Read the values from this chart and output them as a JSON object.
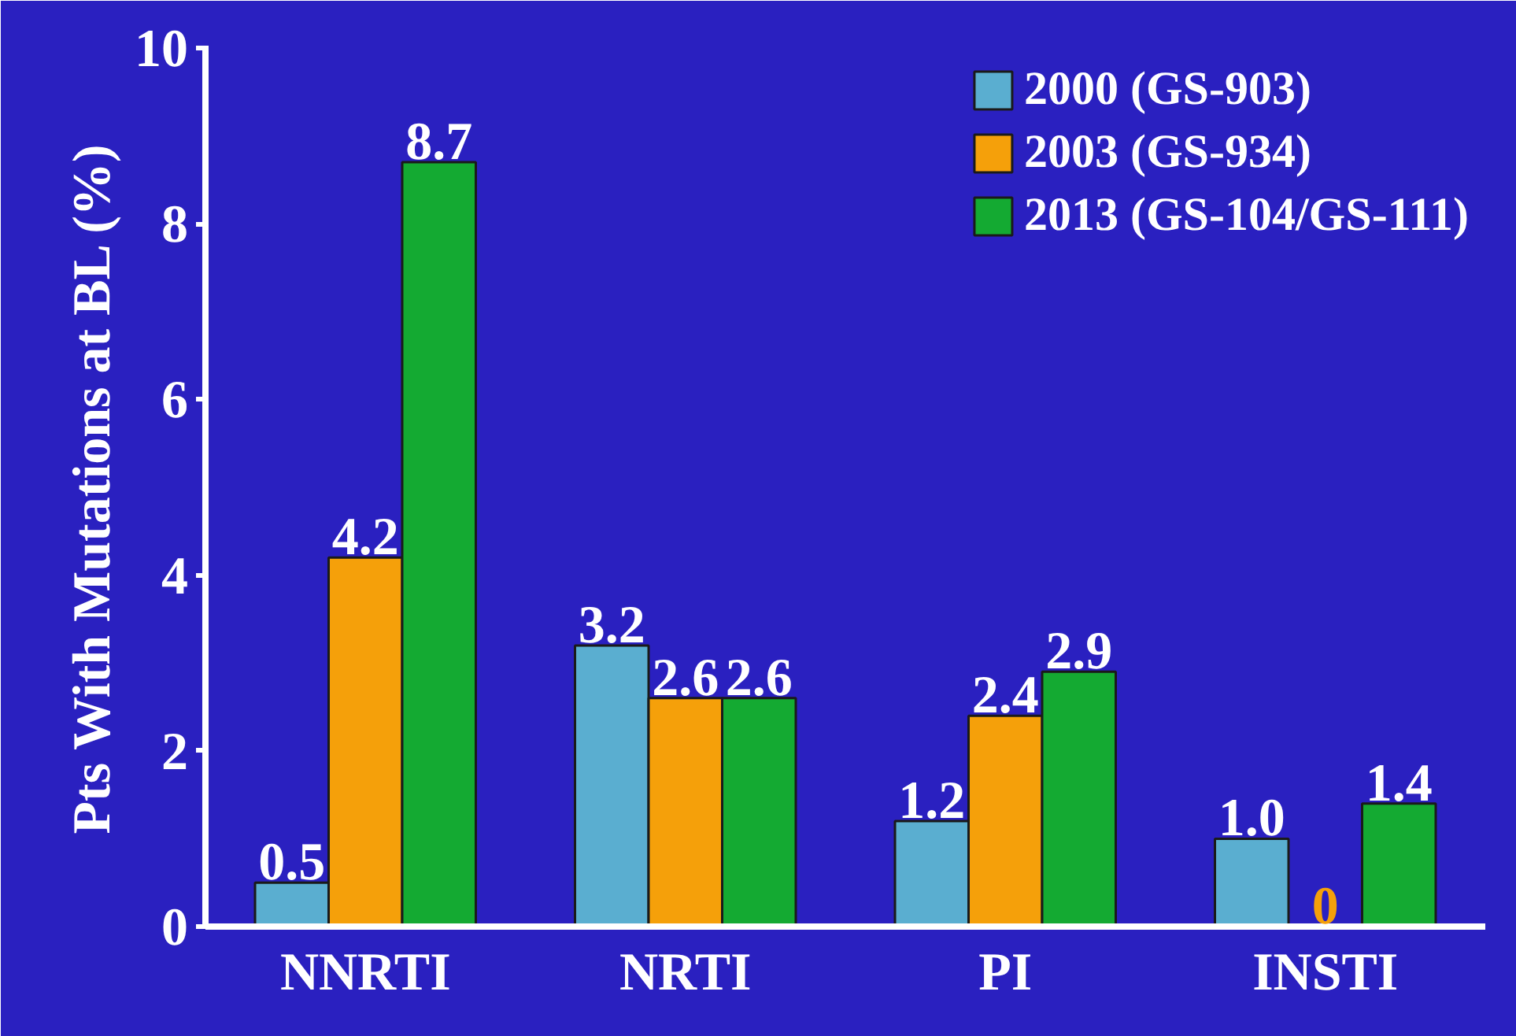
{
  "chart_data": {
    "type": "bar",
    "ylabel": "Pts With Mutations at BL (%)",
    "categories": [
      "NNRTI",
      "NRTI",
      "PI",
      "INSTI"
    ],
    "series": [
      {
        "name": "2000 (GS-903)",
        "color": "#5aaed0",
        "values": [
          0.5,
          3.2,
          1.2,
          1.0
        ],
        "value_labels": [
          "0.5",
          "3.2",
          "1.2",
          "1.0"
        ]
      },
      {
        "name": "2003 (GS-934)",
        "color": "#f5a00a",
        "values": [
          4.2,
          2.6,
          2.4,
          0
        ],
        "value_labels": [
          "4.2",
          "2.6",
          "2.4",
          "0"
        ]
      },
      {
        "name": "2013 (GS-104/GS-111)",
        "color": "#14aa32",
        "values": [
          8.7,
          2.6,
          2.9,
          1.4
        ],
        "value_labels": [
          "8.7",
          "2.6",
          "2.9",
          "1.4"
        ]
      }
    ],
    "ylim": [
      0,
      10
    ],
    "yticks": [
      0,
      2,
      4,
      6,
      8,
      10
    ],
    "grid": false,
    "legend": "top right"
  }
}
